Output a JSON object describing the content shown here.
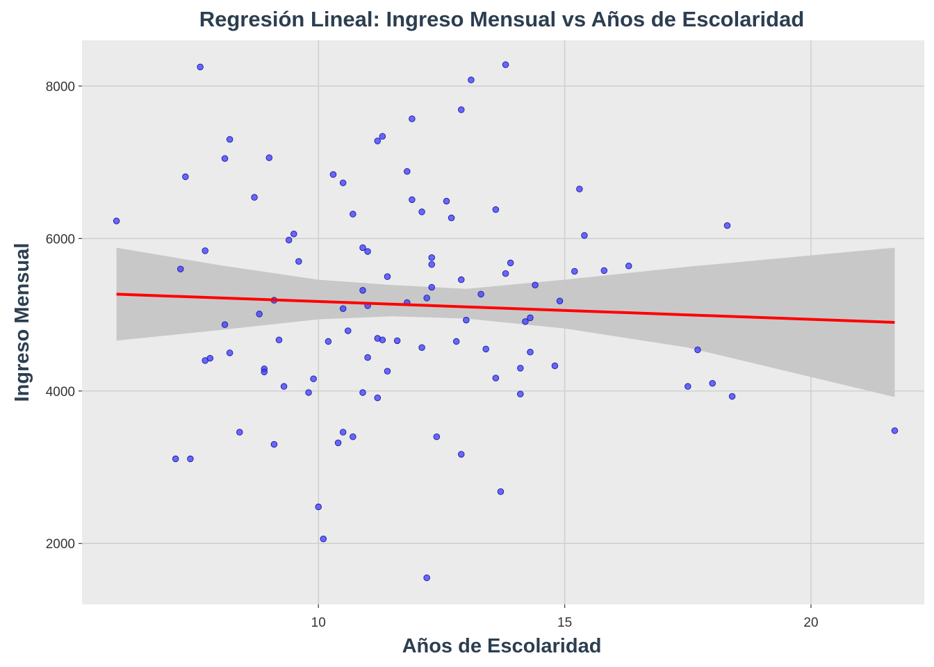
{
  "chart_data": {
    "type": "scatter",
    "title": "Regresión Lineal: Ingreso Mensual vs Años de Escolaridad",
    "xlabel": "Años de Escolaridad",
    "ylabel": "Ingreso Mensual",
    "xlim": [
      5.2,
      22.3
    ],
    "ylim": [
      1200,
      8600
    ],
    "xticks": [
      10,
      15,
      20
    ],
    "yticks": [
      2000,
      4000,
      6000,
      8000
    ],
    "xtick_labels": [
      "10",
      "15",
      "20"
    ],
    "ytick_labels": [
      "2000",
      "4000",
      "6000",
      "8000"
    ],
    "grid": true,
    "colors": {
      "panel": "#ebebeb",
      "grid": "#d0d0d0",
      "points": "#3b3bff",
      "point_outline": "#1a1aa0",
      "regression_line": "#ff0000",
      "confidence_band": "#c4c4c4",
      "text": "#2c3e50"
    },
    "regression": {
      "x_range": [
        5.9,
        21.7
      ],
      "y_start": 5270,
      "y_end": 4900,
      "ci_band": [
        {
          "x": 5.9,
          "lower": 4660,
          "upper": 5880
        },
        {
          "x": 8.0,
          "lower": 4800,
          "upper": 5650
        },
        {
          "x": 10.0,
          "lower": 4940,
          "upper": 5460
        },
        {
          "x": 11.5,
          "lower": 4980,
          "upper": 5390
        },
        {
          "x": 13.0,
          "lower": 4950,
          "upper": 5340
        },
        {
          "x": 15.0,
          "lower": 4820,
          "upper": 5460
        },
        {
          "x": 17.5,
          "lower": 4570,
          "upper": 5630
        },
        {
          "x": 21.7,
          "lower": 3920,
          "upper": 5880
        }
      ]
    },
    "points": [
      {
        "x": 5.9,
        "y": 6230
      },
      {
        "x": 7.1,
        "y": 3110
      },
      {
        "x": 7.2,
        "y": 5600
      },
      {
        "x": 7.3,
        "y": 6810
      },
      {
        "x": 7.4,
        "y": 3110
      },
      {
        "x": 7.6,
        "y": 8250
      },
      {
        "x": 7.7,
        "y": 5840
      },
      {
        "x": 7.7,
        "y": 4400
      },
      {
        "x": 7.8,
        "y": 4430
      },
      {
        "x": 8.1,
        "y": 7050
      },
      {
        "x": 8.1,
        "y": 4870
      },
      {
        "x": 8.2,
        "y": 7300
      },
      {
        "x": 8.2,
        "y": 4500
      },
      {
        "x": 8.4,
        "y": 3460
      },
      {
        "x": 8.7,
        "y": 6540
      },
      {
        "x": 8.8,
        "y": 5010
      },
      {
        "x": 8.9,
        "y": 4290
      },
      {
        "x": 8.9,
        "y": 4250
      },
      {
        "x": 9.0,
        "y": 7060
      },
      {
        "x": 9.1,
        "y": 5190
      },
      {
        "x": 9.1,
        "y": 3300
      },
      {
        "x": 9.2,
        "y": 4670
      },
      {
        "x": 9.3,
        "y": 4060
      },
      {
        "x": 9.4,
        "y": 5980
      },
      {
        "x": 9.5,
        "y": 6060
      },
      {
        "x": 9.6,
        "y": 5700
      },
      {
        "x": 9.8,
        "y": 3980
      },
      {
        "x": 9.9,
        "y": 4160
      },
      {
        "x": 10.0,
        "y": 2480
      },
      {
        "x": 10.1,
        "y": 2060
      },
      {
        "x": 10.2,
        "y": 4650
      },
      {
        "x": 10.3,
        "y": 6840
      },
      {
        "x": 10.4,
        "y": 3320
      },
      {
        "x": 10.5,
        "y": 6730
      },
      {
        "x": 10.5,
        "y": 5080
      },
      {
        "x": 10.5,
        "y": 3460
      },
      {
        "x": 10.6,
        "y": 4790
      },
      {
        "x": 10.7,
        "y": 6320
      },
      {
        "x": 10.7,
        "y": 3400
      },
      {
        "x": 10.9,
        "y": 5880
      },
      {
        "x": 10.9,
        "y": 5320
      },
      {
        "x": 10.9,
        "y": 3980
      },
      {
        "x": 11.0,
        "y": 5830
      },
      {
        "x": 11.0,
        "y": 5120
      },
      {
        "x": 11.0,
        "y": 4440
      },
      {
        "x": 11.2,
        "y": 7280
      },
      {
        "x": 11.2,
        "y": 4690
      },
      {
        "x": 11.2,
        "y": 3910
      },
      {
        "x": 11.3,
        "y": 7340
      },
      {
        "x": 11.3,
        "y": 4670
      },
      {
        "x": 11.4,
        "y": 5500
      },
      {
        "x": 11.4,
        "y": 4260
      },
      {
        "x": 11.6,
        "y": 4660
      },
      {
        "x": 11.8,
        "y": 6880
      },
      {
        "x": 11.8,
        "y": 5160
      },
      {
        "x": 11.9,
        "y": 7570
      },
      {
        "x": 11.9,
        "y": 6510
      },
      {
        "x": 12.1,
        "y": 6350
      },
      {
        "x": 12.1,
        "y": 4570
      },
      {
        "x": 12.2,
        "y": 5220
      },
      {
        "x": 12.2,
        "y": 1550
      },
      {
        "x": 12.3,
        "y": 5750
      },
      {
        "x": 12.3,
        "y": 5660
      },
      {
        "x": 12.3,
        "y": 5360
      },
      {
        "x": 12.4,
        "y": 3400
      },
      {
        "x": 12.6,
        "y": 6490
      },
      {
        "x": 12.7,
        "y": 6270
      },
      {
        "x": 12.8,
        "y": 4650
      },
      {
        "x": 12.9,
        "y": 7690
      },
      {
        "x": 12.9,
        "y": 5460
      },
      {
        "x": 12.9,
        "y": 3170
      },
      {
        "x": 13.0,
        "y": 4930
      },
      {
        "x": 13.1,
        "y": 8080
      },
      {
        "x": 13.3,
        "y": 5270
      },
      {
        "x": 13.4,
        "y": 4550
      },
      {
        "x": 13.6,
        "y": 6380
      },
      {
        "x": 13.6,
        "y": 4170
      },
      {
        "x": 13.7,
        "y": 2680
      },
      {
        "x": 13.8,
        "y": 8280
      },
      {
        "x": 13.8,
        "y": 5540
      },
      {
        "x": 13.9,
        "y": 5680
      },
      {
        "x": 14.1,
        "y": 4300
      },
      {
        "x": 14.1,
        "y": 3960
      },
      {
        "x": 14.2,
        "y": 4910
      },
      {
        "x": 14.3,
        "y": 4960
      },
      {
        "x": 14.3,
        "y": 4510
      },
      {
        "x": 14.4,
        "y": 5390
      },
      {
        "x": 14.8,
        "y": 4330
      },
      {
        "x": 14.9,
        "y": 5180
      },
      {
        "x": 15.2,
        "y": 5570
      },
      {
        "x": 15.3,
        "y": 6650
      },
      {
        "x": 15.4,
        "y": 6040
      },
      {
        "x": 15.8,
        "y": 5580
      },
      {
        "x": 16.3,
        "y": 5640
      },
      {
        "x": 17.5,
        "y": 4060
      },
      {
        "x": 17.7,
        "y": 4540
      },
      {
        "x": 18.0,
        "y": 4100
      },
      {
        "x": 18.3,
        "y": 6170
      },
      {
        "x": 18.4,
        "y": 3930
      },
      {
        "x": 21.7,
        "y": 3480
      }
    ]
  }
}
